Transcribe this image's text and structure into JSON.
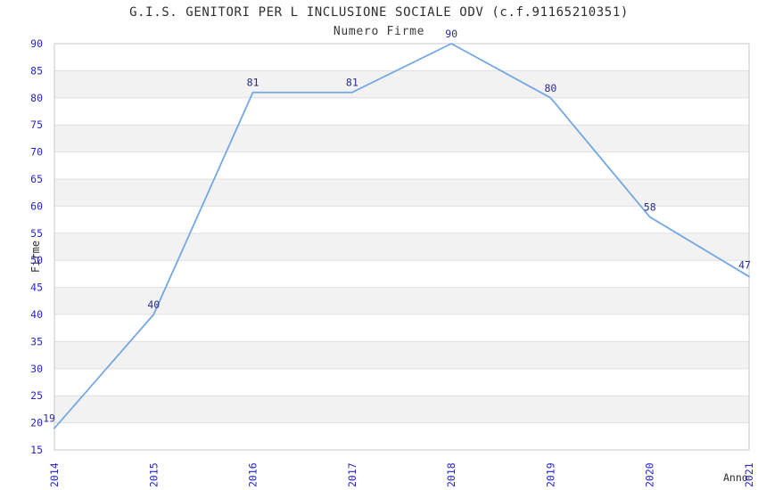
{
  "chart_data": {
    "type": "line",
    "title": "G.I.S. GENITORI PER L INCLUSIONE SOCIALE ODV (c.f.91165210351)",
    "subtitle": "Numero Firme",
    "xlabel": "Anno",
    "ylabel": "Firme",
    "categories": [
      "2014",
      "2015",
      "2016",
      "2017",
      "2018",
      "2019",
      "2020",
      "2021"
    ],
    "values": [
      19,
      40,
      81,
      81,
      90,
      80,
      58,
      47
    ],
    "ylim": [
      15,
      90
    ],
    "ytick_step": 5,
    "yticks": [
      15,
      20,
      25,
      30,
      35,
      40,
      45,
      50,
      55,
      60,
      65,
      70,
      75,
      80,
      85,
      90
    ],
    "grid": "horizontal-bands",
    "legend_position": "none",
    "data_labels_shown": true,
    "colors": {
      "line": "#74a7e3",
      "axis_tick_label": "#2525cc",
      "data_label": "#2a2a8f",
      "band_gray": "#f2f2f2",
      "band_white": "#ffffff",
      "grid_line": "#e0e0e0",
      "plot_border": "#c8c8c8",
      "title_text": "#2e2e2e",
      "background": "#ffffff"
    }
  }
}
